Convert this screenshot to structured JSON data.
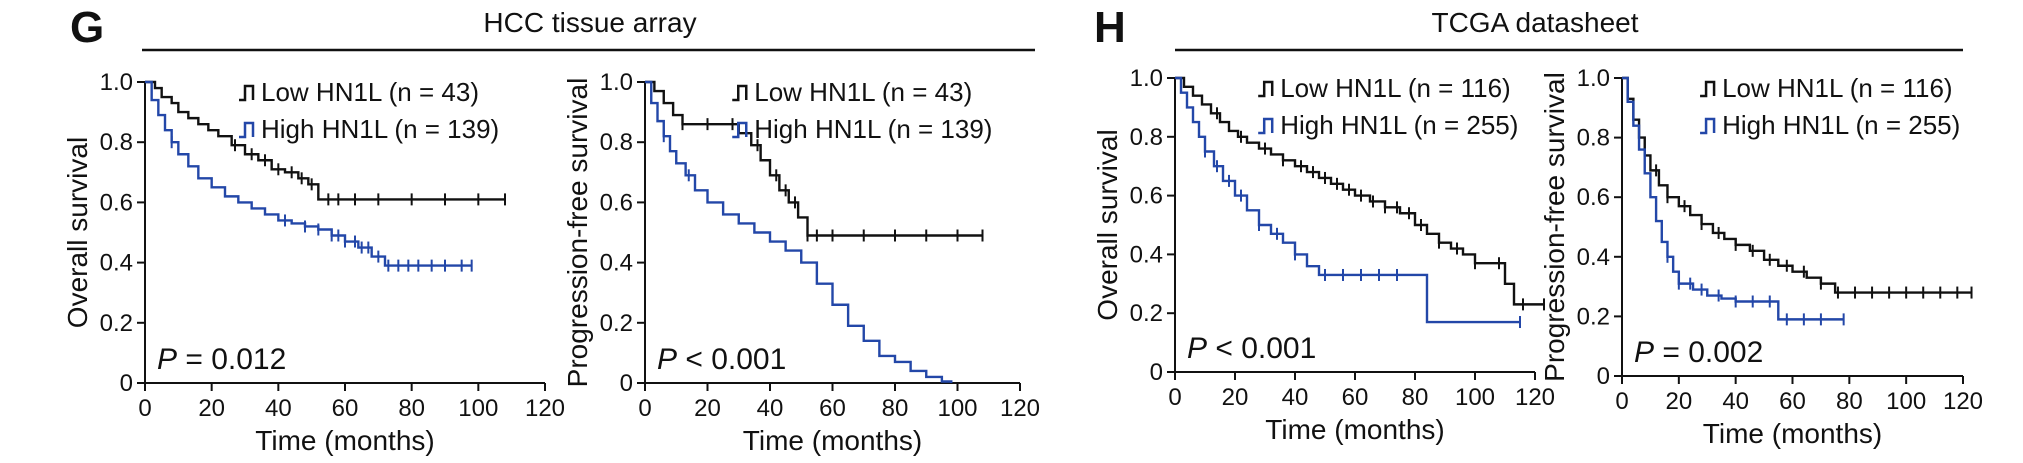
{
  "panels": [
    {
      "letter": "G",
      "title": "HCC tissue array"
    },
    {
      "letter": "H",
      "title": "TCGA datasheet"
    }
  ],
  "colors": {
    "low": "#111111",
    "high": "#2347a8"
  },
  "chart_data": [
    {
      "type": "line",
      "panel": "G",
      "ylabel": "Overall survival",
      "xlabel": "Time (months)",
      "xlim": [
        0,
        120
      ],
      "ylim": [
        0,
        1.0
      ],
      "x_ticks": [
        "0",
        "20",
        "40",
        "60",
        "80",
        "100",
        "120"
      ],
      "y_ticks": [
        "0",
        "0.2",
        "0.4",
        "0.6",
        "0.8",
        "1.0"
      ],
      "legend_position": "top-right",
      "p_label": "P",
      "p_text": " = 0.012",
      "series": [
        {
          "name": "Low HN1L (n = 43)",
          "color": "#111111",
          "x": [
            0,
            3,
            5,
            8,
            10,
            13,
            16,
            19,
            22,
            26,
            30,
            34,
            38,
            42,
            46,
            49,
            52,
            55,
            60,
            70,
            80,
            90,
            100,
            108
          ],
          "y": [
            1.0,
            0.98,
            0.95,
            0.93,
            0.9,
            0.88,
            0.86,
            0.84,
            0.82,
            0.79,
            0.76,
            0.74,
            0.71,
            0.7,
            0.68,
            0.66,
            0.61,
            0.61,
            0.61,
            0.61,
            0.61,
            0.61,
            0.61,
            0.61
          ],
          "censor_x": [
            27,
            32,
            36,
            40,
            44,
            47,
            50,
            55,
            58,
            63,
            70,
            80,
            90,
            100,
            108
          ]
        },
        {
          "name": "High HN1L (n = 139)",
          "color": "#2347a8",
          "x": [
            0,
            2,
            4,
            6,
            8,
            10,
            13,
            16,
            20,
            24,
            28,
            32,
            36,
            40,
            44,
            48,
            52,
            56,
            60,
            64,
            68,
            72,
            76,
            80,
            90,
            98
          ],
          "y": [
            1.0,
            0.94,
            0.89,
            0.84,
            0.8,
            0.76,
            0.72,
            0.68,
            0.65,
            0.62,
            0.6,
            0.58,
            0.56,
            0.54,
            0.53,
            0.52,
            0.51,
            0.49,
            0.47,
            0.45,
            0.42,
            0.39,
            0.39,
            0.39,
            0.39,
            0.39
          ],
          "censor_x": [
            8,
            42,
            48,
            52,
            56,
            58,
            60,
            63,
            65,
            67,
            70,
            73,
            76,
            79,
            82,
            86,
            90,
            95,
            98
          ]
        }
      ]
    },
    {
      "type": "line",
      "panel": "G",
      "ylabel": "Progression-free survival",
      "xlabel": "Time (months)",
      "xlim": [
        0,
        120
      ],
      "ylim": [
        0,
        1.0
      ],
      "x_ticks": [
        "0",
        "20",
        "40",
        "60",
        "80",
        "100",
        "120"
      ],
      "y_ticks": [
        "0",
        "0.2",
        "0.4",
        "0.6",
        "0.8",
        "1.0"
      ],
      "legend_position": "top-right",
      "p_label": "P",
      "p_text": " < 0.001",
      "series": [
        {
          "name": "Low HN1L (n = 43)",
          "color": "#111111",
          "x": [
            0,
            3,
            6,
            9,
            12,
            18,
            24,
            30,
            34,
            37,
            40,
            43,
            46,
            49,
            52,
            55,
            60,
            70,
            80,
            90,
            100,
            108
          ],
          "y": [
            1.0,
            0.97,
            0.93,
            0.89,
            0.86,
            0.86,
            0.86,
            0.83,
            0.79,
            0.74,
            0.69,
            0.64,
            0.6,
            0.55,
            0.49,
            0.49,
            0.49,
            0.49,
            0.49,
            0.49,
            0.49,
            0.49
          ],
          "censor_x": [
            12,
            20,
            28,
            36,
            42,
            45,
            48,
            52,
            55,
            60,
            70,
            80,
            90,
            100,
            108
          ]
        },
        {
          "name": "High HN1L (n = 139)",
          "color": "#2347a8",
          "x": [
            0,
            2,
            4,
            6,
            8,
            10,
            13,
            16,
            20,
            25,
            30,
            35,
            40,
            45,
            50,
            55,
            60,
            65,
            70,
            75,
            80,
            85,
            90,
            95,
            98
          ],
          "y": [
            1.0,
            0.93,
            0.87,
            0.82,
            0.77,
            0.73,
            0.69,
            0.64,
            0.6,
            0.56,
            0.53,
            0.5,
            0.47,
            0.44,
            0.4,
            0.33,
            0.26,
            0.19,
            0.14,
            0.09,
            0.07,
            0.04,
            0.02,
            0.005,
            0.0
          ],
          "censor_x": [
            6,
            14
          ]
        }
      ]
    },
    {
      "type": "line",
      "panel": "H",
      "ylabel": "Overall survival",
      "xlabel": "Time (months)",
      "xlim": [
        0,
        120
      ],
      "ylim": [
        0,
        1.0
      ],
      "x_ticks": [
        "0",
        "20",
        "40",
        "60",
        "80",
        "100",
        "120"
      ],
      "y_ticks": [
        "0",
        "0.2",
        "0.4",
        "0.6",
        "0.8",
        "1.0"
      ],
      "legend_position": "top-right",
      "p_label": "P",
      "p_text": " < 0.001",
      "series": [
        {
          "name": "Low HN1L (n = 116)",
          "color": "#111111",
          "x": [
            0,
            3,
            6,
            9,
            12,
            15,
            18,
            21,
            24,
            28,
            32,
            36,
            40,
            44,
            48,
            52,
            56,
            60,
            65,
            70,
            75,
            80,
            84,
            88,
            92,
            96,
            100,
            105,
            110,
            113,
            118,
            123
          ],
          "y": [
            1.0,
            0.97,
            0.94,
            0.91,
            0.88,
            0.85,
            0.82,
            0.8,
            0.78,
            0.76,
            0.74,
            0.72,
            0.7,
            0.68,
            0.66,
            0.64,
            0.62,
            0.6,
            0.58,
            0.56,
            0.54,
            0.5,
            0.47,
            0.44,
            0.42,
            0.4,
            0.37,
            0.37,
            0.3,
            0.23,
            0.23,
            0.23
          ],
          "censor_x": [
            14,
            22,
            30,
            36,
            42,
            46,
            50,
            54,
            58,
            62,
            66,
            70,
            74,
            78,
            82,
            88,
            94,
            100,
            108,
            116,
            123
          ]
        },
        {
          "name": "High HN1L (n = 255)",
          "color": "#2347a8",
          "x": [
            0,
            2,
            4,
            6,
            8,
            10,
            13,
            16,
            20,
            24,
            28,
            32,
            36,
            40,
            44,
            48,
            55,
            65,
            75,
            84,
            90,
            100,
            115
          ],
          "y": [
            1.0,
            0.95,
            0.9,
            0.85,
            0.8,
            0.75,
            0.7,
            0.65,
            0.6,
            0.55,
            0.5,
            0.47,
            0.44,
            0.4,
            0.36,
            0.33,
            0.33,
            0.33,
            0.33,
            0.17,
            0.17,
            0.17,
            0.17
          ],
          "censor_x": [
            10,
            14,
            18,
            22,
            28,
            34,
            40,
            50,
            56,
            62,
            68,
            74,
            115
          ]
        }
      ]
    },
    {
      "type": "line",
      "panel": "H",
      "ylabel": "Progression-free survival",
      "xlabel": "Time (months)",
      "xlim": [
        0,
        120
      ],
      "ylim": [
        0,
        1.0
      ],
      "x_ticks": [
        "0",
        "20",
        "40",
        "60",
        "80",
        "100",
        "120"
      ],
      "y_ticks": [
        "0",
        "0.2",
        "0.4",
        "0.6",
        "0.8",
        "1.0"
      ],
      "legend_position": "top-right",
      "p_label": "P",
      "p_text": " = 0.002",
      "series": [
        {
          "name": "Low HN1L (n = 116)",
          "color": "#111111",
          "x": [
            0,
            2,
            4,
            6,
            8,
            10,
            13,
            16,
            20,
            24,
            28,
            32,
            36,
            40,
            45,
            50,
            55,
            60,
            65,
            70,
            75,
            80,
            90,
            100,
            110,
            123
          ],
          "y": [
            1.0,
            0.93,
            0.86,
            0.8,
            0.74,
            0.69,
            0.64,
            0.6,
            0.57,
            0.54,
            0.51,
            0.48,
            0.46,
            0.44,
            0.42,
            0.39,
            0.37,
            0.35,
            0.33,
            0.31,
            0.28,
            0.28,
            0.28,
            0.28,
            0.28,
            0.28
          ],
          "censor_x": [
            12,
            16,
            22,
            28,
            34,
            40,
            46,
            52,
            58,
            64,
            70,
            76,
            82,
            88,
            94,
            100,
            106,
            112,
            118,
            123
          ]
        },
        {
          "name": "High HN1L (n = 255)",
          "color": "#2347a8",
          "x": [
            0,
            2,
            4,
            6,
            8,
            10,
            12,
            14,
            16,
            18,
            20,
            25,
            30,
            35,
            40,
            45,
            50,
            55,
            60,
            65,
            70,
            78
          ],
          "y": [
            1.0,
            0.92,
            0.84,
            0.76,
            0.68,
            0.6,
            0.52,
            0.45,
            0.4,
            0.35,
            0.31,
            0.29,
            0.27,
            0.26,
            0.25,
            0.25,
            0.25,
            0.19,
            0.19,
            0.19,
            0.19,
            0.19
          ],
          "censor_x": [
            16,
            20,
            24,
            28,
            34,
            40,
            46,
            52,
            58,
            64,
            70,
            78
          ]
        }
      ]
    }
  ]
}
